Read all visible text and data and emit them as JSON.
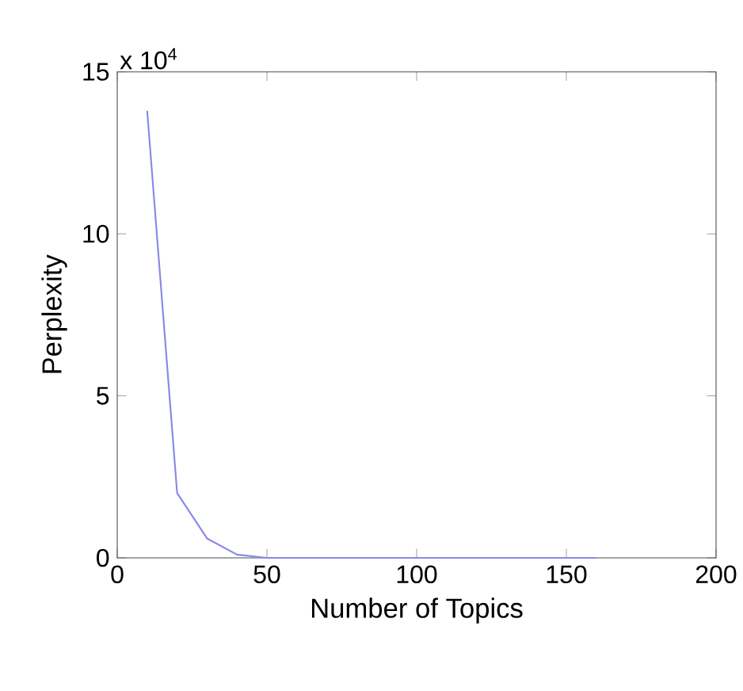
{
  "chart_data": {
    "type": "line",
    "xlabel": "Number of Topics",
    "ylabel": "Perplexity",
    "annotations": [
      "x 10$^{4}$"
    ],
    "x": [
      10,
      20,
      30,
      40,
      50,
      60,
      70,
      80,
      90,
      100,
      110,
      120,
      130,
      140,
      150,
      160
    ],
    "series": [
      {
        "color": "#8888e8",
        "values": [
          13.8,
          2,
          0.6,
          0.1,
          0,
          0,
          0,
          0,
          0,
          0,
          0,
          0,
          0,
          0,
          0,
          0
        ]
      }
    ],
    "xlim": [
      0,
      200
    ],
    "xticks": [
      0,
      50,
      100,
      150,
      200
    ],
    "ylim": [
      0,
      15
    ],
    "yticks": [
      0,
      5,
      10,
      15
    ],
    "grid": false,
    "marker": "none",
    "line_style": "solid"
  }
}
